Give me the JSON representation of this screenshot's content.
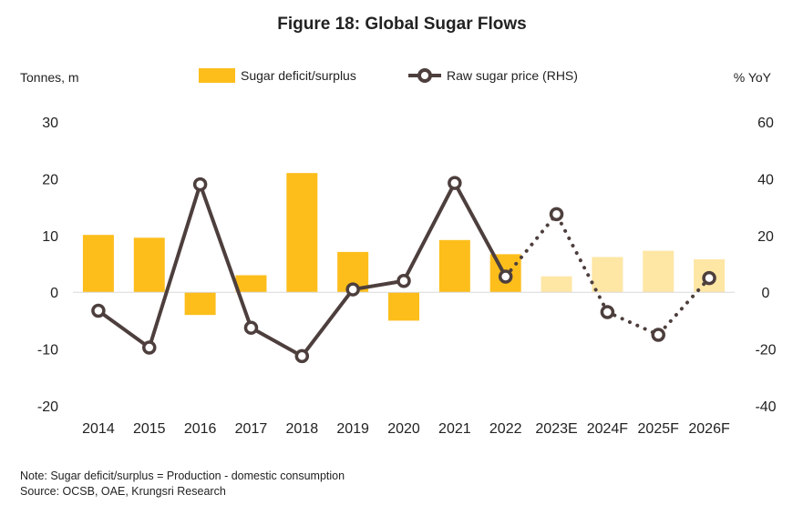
{
  "chart_data": {
    "type": "bar+line",
    "title": "Figure 18: Global Sugar Flows",
    "left_axis_label": "Tonnes, m",
    "right_axis_label": "% YoY",
    "categories": [
      "2014",
      "2015",
      "2016",
      "2017",
      "2018",
      "2019",
      "2020",
      "2021",
      "2022",
      "2023E",
      "2024F",
      "2025F",
      "2026F"
    ],
    "forecast_start_index": 9,
    "left_ylim": [
      -20,
      30
    ],
    "left_ticks": [
      -20,
      -10,
      0,
      10,
      20,
      30
    ],
    "right_ylim": [
      -40,
      60
    ],
    "right_ticks": [
      -40,
      -20,
      0,
      20,
      40,
      60
    ],
    "series": [
      {
        "name": "Sugar deficit/surplus",
        "kind": "bar",
        "axis": "left",
        "color": "#FDBE1C",
        "forecast_color": "#FEE6A4",
        "values": [
          10.1,
          9.6,
          -4,
          3,
          21,
          7.1,
          -5,
          9.2,
          6.7,
          2.8,
          6.2,
          7.3,
          5.8
        ]
      },
      {
        "name": "Raw sugar price (RHS)",
        "kind": "line",
        "axis": "right",
        "color": "#4D3F3D",
        "values": [
          -6.5,
          -19.5,
          38,
          -12.5,
          -22.5,
          1,
          4,
          38.5,
          5.5,
          27.5,
          -7,
          -15,
          5
        ]
      }
    ],
    "legend_position": "top-center",
    "notes": [
      "Note: Sugar deficit/surplus = Production - domestic consumption",
      "Source: OCSB, OAE, Krungsri Research"
    ]
  }
}
